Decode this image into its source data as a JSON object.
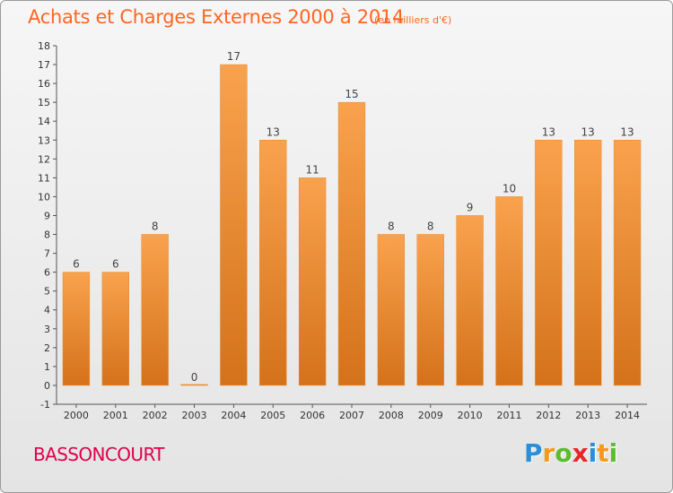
{
  "title": "Achats et Charges Externes 2000 à 2014",
  "unit": "(en milliers d'€)",
  "commune": "BASSONCOURT",
  "logo": {
    "text": "Proxiti",
    "letters": [
      {
        "ch": "P",
        "color": "#2a8fd8"
      },
      {
        "ch": "r",
        "color": "#f29a1c"
      },
      {
        "ch": "o",
        "color": "#5dbb2e"
      },
      {
        "ch": "x",
        "color": "#e8262a"
      },
      {
        "ch": "i",
        "color": "#2a8fd8"
      },
      {
        "ch": "t",
        "color": "#f29a1c"
      },
      {
        "ch": "i",
        "color": "#5dbb2e"
      }
    ]
  },
  "colors": {
    "bar_light": "#f9a24e",
    "bar_dark": "#d4721a",
    "title": "#ff6622",
    "commune": "#e0004d"
  },
  "chart_data": {
    "type": "bar",
    "categories": [
      "2000",
      "2001",
      "2002",
      "2003",
      "2004",
      "2005",
      "2006",
      "2007",
      "2008",
      "2009",
      "2010",
      "2011",
      "2012",
      "2013",
      "2014"
    ],
    "values": [
      6,
      6,
      8,
      0,
      17,
      13,
      11,
      15,
      8,
      8,
      9,
      10,
      13,
      13,
      13
    ],
    "labels": [
      "6",
      "6",
      "8",
      "0",
      "17",
      "13",
      "11",
      "15",
      "8",
      "8",
      "9",
      "10",
      "13",
      "13",
      "13"
    ],
    "yticks": [
      "-1",
      "0",
      "1",
      "2",
      "3",
      "4",
      "5",
      "6",
      "7",
      "8",
      "9",
      "10",
      "11",
      "12",
      "13",
      "14",
      "15",
      "16",
      "17",
      "18"
    ],
    "ylim": [
      -1,
      18
    ],
    "grid": false
  }
}
